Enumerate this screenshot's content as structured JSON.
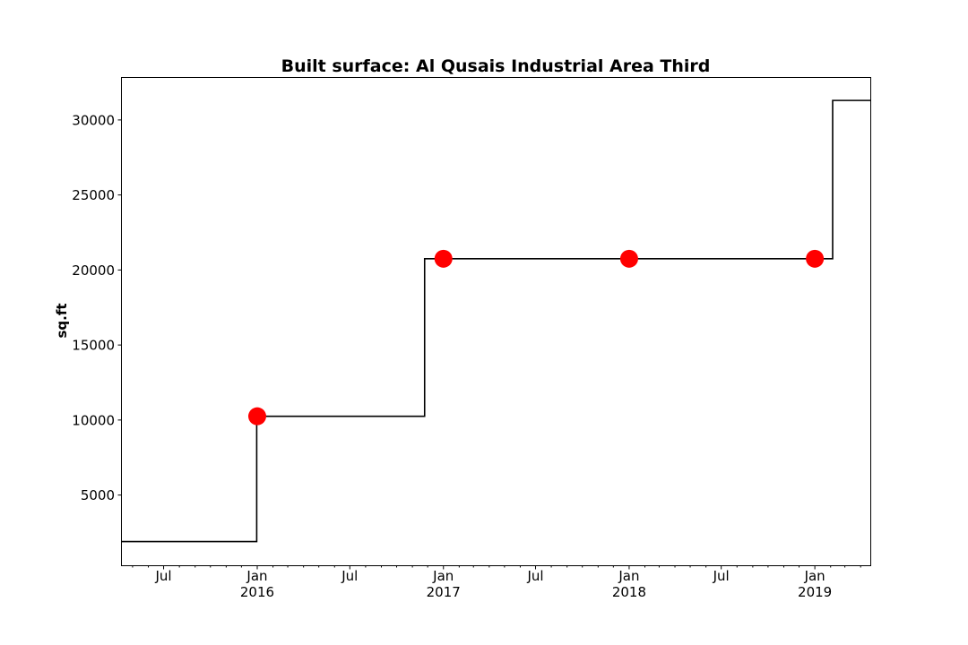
{
  "chart_data": {
    "type": "line",
    "title": "Built surface: Al Qusais Industrial Area Third",
    "xlabel": "",
    "ylabel": "sq.ft",
    "x_range": [
      "2015-04-10",
      "2019-04-20"
    ],
    "ylim": [
      320,
      32800
    ],
    "grid": false,
    "y_ticks": [
      5000,
      10000,
      15000,
      20000,
      25000,
      30000
    ],
    "x_ticks": [
      {
        "date": "2015-07-01",
        "label": "Jul",
        "sublabel": ""
      },
      {
        "date": "2016-01-01",
        "label": "Jan",
        "sublabel": "2016"
      },
      {
        "date": "2016-07-01",
        "label": "Jul",
        "sublabel": ""
      },
      {
        "date": "2017-01-01",
        "label": "Jan",
        "sublabel": "2017"
      },
      {
        "date": "2017-07-01",
        "label": "Jul",
        "sublabel": ""
      },
      {
        "date": "2018-01-01",
        "label": "Jan",
        "sublabel": "2018"
      },
      {
        "date": "2018-07-01",
        "label": "Jul",
        "sublabel": ""
      },
      {
        "date": "2019-01-01",
        "label": "Jan",
        "sublabel": "2019"
      }
    ],
    "series": [
      {
        "kind": "step",
        "color": "#000000",
        "x": [
          "2015-04-10",
          "2015-12-31",
          "2016-11-25",
          "2019-02-05",
          "2019-04-20"
        ],
        "y": [
          1900,
          10250,
          20750,
          31300,
          31300
        ]
      },
      {
        "kind": "markers",
        "color": "#ff0000",
        "x": [
          "2016-01-01",
          "2017-01-01",
          "2018-01-01",
          "2019-01-01"
        ],
        "y": [
          10250,
          20750,
          20750,
          20750
        ]
      }
    ]
  }
}
